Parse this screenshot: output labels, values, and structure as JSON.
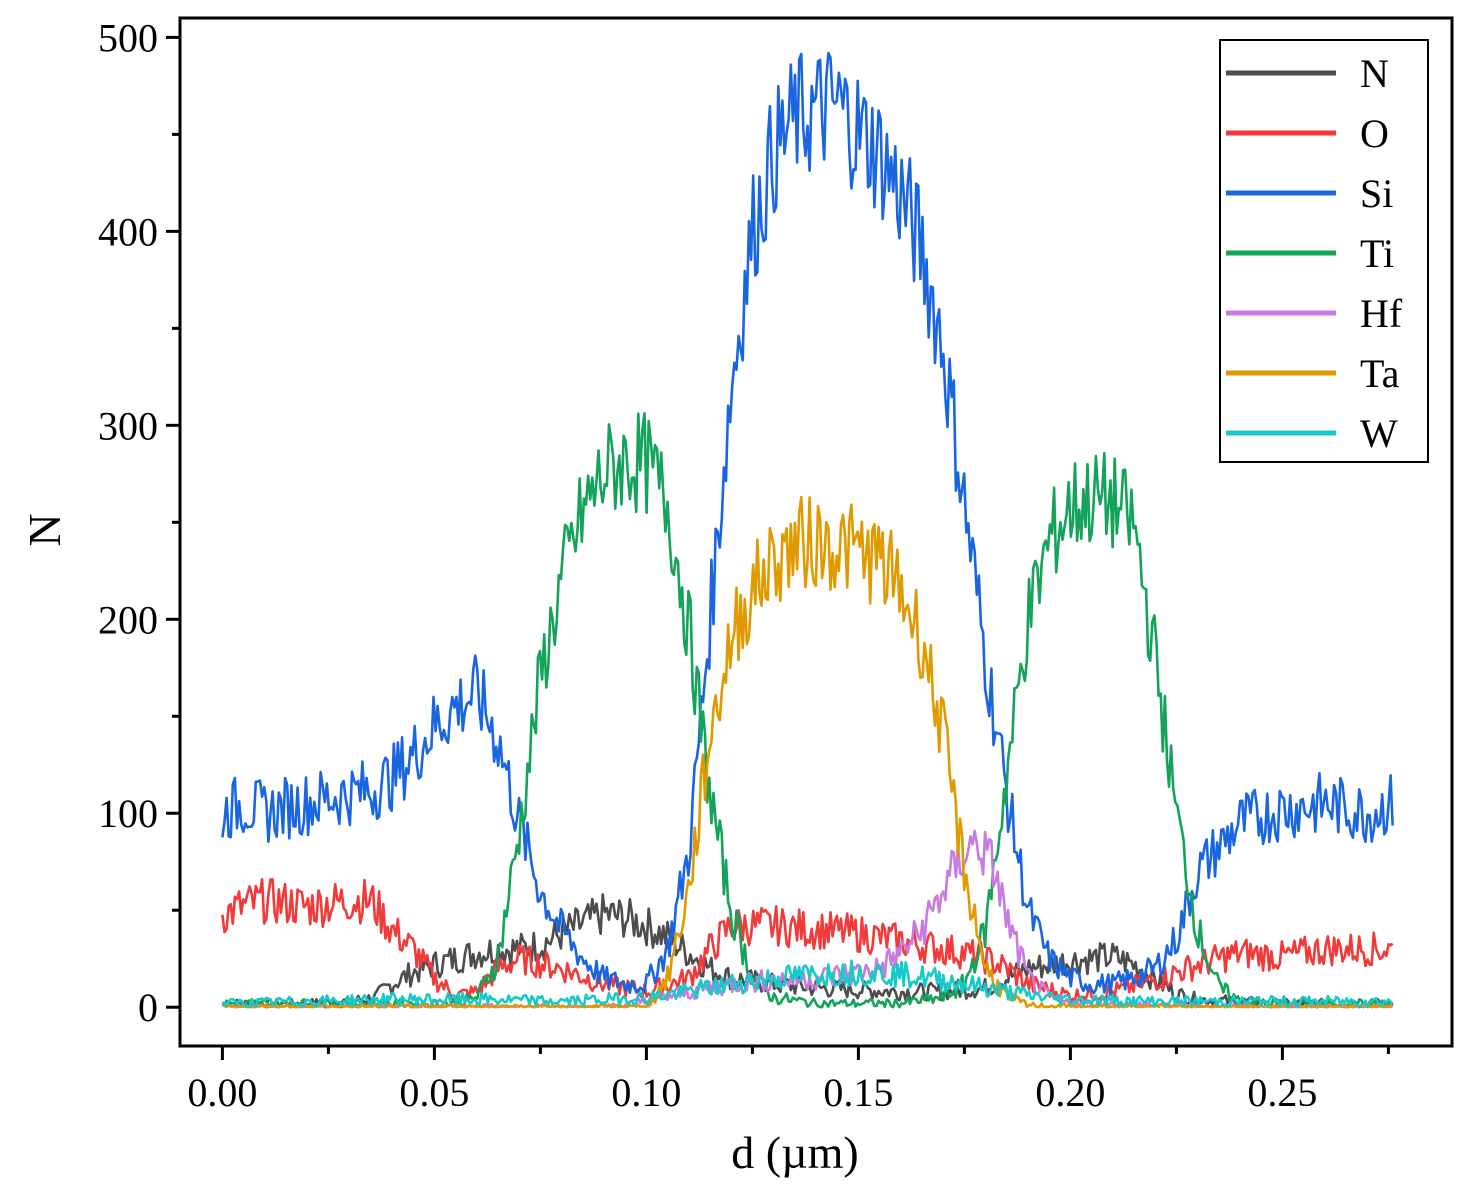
{
  "chart_data": {
    "type": "line",
    "title": "",
    "xlabel": "d (µm)",
    "ylabel": "N",
    "xlim": [
      -0.01,
      0.29
    ],
    "ylim": [
      -20,
      510
    ],
    "xticks": [
      0.0,
      0.05,
      0.1,
      0.15,
      0.2,
      0.25
    ],
    "xtick_labels": [
      "0.00",
      "0.05",
      "0.10",
      "0.15",
      "0.20",
      "0.25"
    ],
    "yticks": [
      0,
      100,
      200,
      300,
      400,
      500
    ],
    "ytick_labels": [
      "0",
      "100",
      "200",
      "300",
      "400",
      "500"
    ],
    "grid": false,
    "legend_position": "top-right",
    "series": [
      {
        "name": "N",
        "color": "#4d4d4d",
        "x": [
          0,
          0.01,
          0.02,
          0.03,
          0.036,
          0.04,
          0.045,
          0.05,
          0.055,
          0.06,
          0.065,
          0.07,
          0.075,
          0.08,
          0.085,
          0.09,
          0.095,
          0.1,
          0.105,
          0.11,
          0.115,
          0.12,
          0.13,
          0.14,
          0.15,
          0.16,
          0.17,
          0.18,
          0.185,
          0.19,
          0.195,
          0.2,
          0.205,
          0.21,
          0.215,
          0.22,
          0.225,
          0.23,
          0.24,
          0.25,
          0.26,
          0.276
        ],
        "y": [
          2,
          2,
          2,
          3,
          5,
          12,
          18,
          22,
          25,
          28,
          30,
          30,
          32,
          38,
          43,
          48,
          46,
          42,
          36,
          28,
          20,
          15,
          12,
          10,
          9,
          8,
          8,
          10,
          15,
          20,
          22,
          24,
          25,
          26,
          22,
          14,
          7,
          4,
          3,
          2,
          2,
          2
        ]
      },
      {
        "name": "O",
        "color": "#f23a3a",
        "x": [
          0,
          0.005,
          0.01,
          0.02,
          0.03,
          0.035,
          0.04,
          0.045,
          0.05,
          0.055,
          0.06,
          0.065,
          0.07,
          0.08,
          0.09,
          0.1,
          0.11,
          0.115,
          0.12,
          0.13,
          0.14,
          0.15,
          0.16,
          0.17,
          0.175,
          0.18,
          0.185,
          0.19,
          0.2,
          0.21,
          0.22,
          0.23,
          0.24,
          0.25,
          0.26,
          0.276
        ],
        "y": [
          48,
          52,
          55,
          52,
          55,
          55,
          40,
          30,
          15,
          6,
          8,
          20,
          25,
          20,
          12,
          8,
          15,
          30,
          42,
          42,
          40,
          38,
          34,
          30,
          28,
          25,
          20,
          12,
          6,
          8,
          14,
          22,
          28,
          26,
          30,
          30
        ]
      },
      {
        "name": "Si",
        "color": "#1a66e0",
        "x": [
          0,
          0.005,
          0.01,
          0.015,
          0.02,
          0.025,
          0.03,
          0.035,
          0.04,
          0.045,
          0.05,
          0.055,
          0.06,
          0.065,
          0.07,
          0.075,
          0.08,
          0.085,
          0.09,
          0.095,
          0.1,
          0.105,
          0.11,
          0.115,
          0.12,
          0.125,
          0.13,
          0.135,
          0.14,
          0.145,
          0.15,
          0.155,
          0.16,
          0.165,
          0.17,
          0.175,
          0.18,
          0.185,
          0.19,
          0.195,
          0.2,
          0.205,
          0.21,
          0.215,
          0.22,
          0.225,
          0.23,
          0.24,
          0.25,
          0.26,
          0.27,
          0.276
        ],
        "y": [
          100,
          105,
          100,
          103,
          105,
          108,
          110,
          112,
          118,
          130,
          145,
          155,
          162,
          138,
          95,
          60,
          40,
          25,
          15,
          12,
          12,
          30,
          80,
          200,
          320,
          400,
          440,
          458,
          462,
          465,
          452,
          440,
          420,
          390,
          340,
          260,
          180,
          110,
          50,
          25,
          15,
          12,
          12,
          15,
          20,
          35,
          70,
          95,
          102,
          105,
          100,
          105
        ]
      },
      {
        "name": "Ti",
        "color": "#14a35a",
        "x": [
          0,
          0.02,
          0.04,
          0.055,
          0.06,
          0.065,
          0.07,
          0.075,
          0.08,
          0.085,
          0.09,
          0.095,
          0.1,
          0.105,
          0.11,
          0.115,
          0.12,
          0.125,
          0.13,
          0.14,
          0.15,
          0.16,
          0.17,
          0.175,
          0.18,
          0.185,
          0.19,
          0.195,
          0.2,
          0.205,
          0.21,
          0.215,
          0.22,
          0.225,
          0.23,
          0.235,
          0.24,
          0.25,
          0.276
        ],
        "y": [
          2,
          2,
          2,
          2,
          5,
          25,
          90,
          170,
          220,
          255,
          275,
          282,
          280,
          260,
          195,
          110,
          50,
          15,
          5,
          2,
          2,
          2,
          5,
          12,
          40,
          120,
          200,
          240,
          258,
          262,
          260,
          248,
          180,
          100,
          40,
          10,
          3,
          2,
          2
        ]
      },
      {
        "name": "Hf",
        "color": "#c77be0",
        "x": [
          0,
          0.05,
          0.09,
          0.1,
          0.11,
          0.12,
          0.13,
          0.14,
          0.15,
          0.155,
          0.16,
          0.165,
          0.17,
          0.175,
          0.178,
          0.182,
          0.185,
          0.19,
          0.195,
          0.2,
          0.25,
          0.276
        ],
        "y": [
          0,
          0,
          0,
          3,
          8,
          12,
          14,
          15,
          18,
          20,
          28,
          40,
          60,
          80,
          85,
          72,
          45,
          15,
          5,
          2,
          0,
          0
        ]
      },
      {
        "name": "Ta",
        "color": "#e09a00",
        "x": [
          0,
          0.05,
          0.1,
          0.105,
          0.11,
          0.115,
          0.12,
          0.125,
          0.13,
          0.135,
          0.14,
          0.145,
          0.15,
          0.155,
          0.16,
          0.165,
          0.17,
          0.175,
          0.18,
          0.185,
          0.19,
          0.2,
          0.25,
          0.276
        ],
        "y": [
          0,
          0,
          0,
          15,
          60,
          140,
          190,
          215,
          230,
          238,
          240,
          238,
          235,
          230,
          215,
          190,
          140,
          70,
          20,
          5,
          1,
          0,
          0,
          0
        ]
      },
      {
        "name": "W",
        "color": "#17c9c9",
        "x": [
          0,
          0.02,
          0.04,
          0.06,
          0.08,
          0.1,
          0.11,
          0.12,
          0.13,
          0.14,
          0.15,
          0.16,
          0.17,
          0.18,
          0.19,
          0.2,
          0.22,
          0.25,
          0.276
        ],
        "y": [
          2,
          3,
          4,
          4,
          3,
          5,
          8,
          12,
          15,
          17,
          18,
          17,
          14,
          10,
          6,
          4,
          3,
          3,
          3
        ]
      }
    ]
  }
}
